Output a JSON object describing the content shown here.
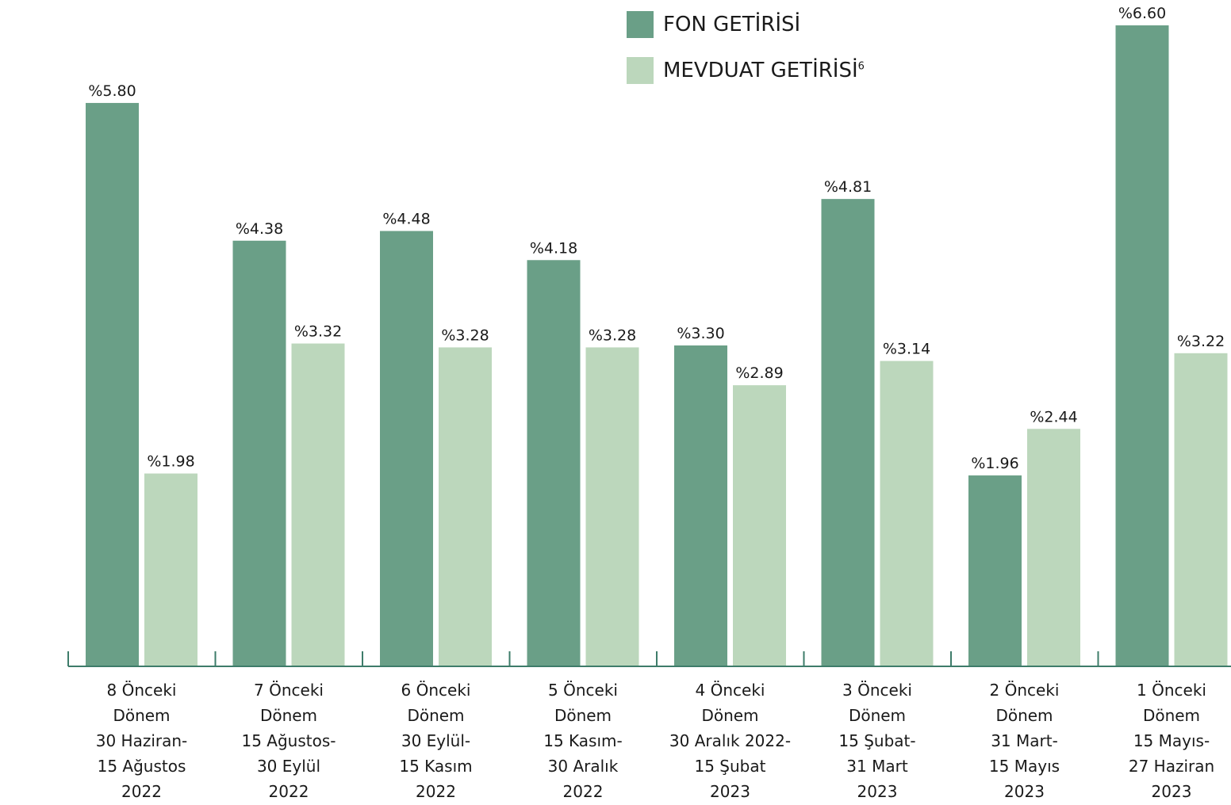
{
  "chart_data": {
    "type": "bar",
    "colors": {
      "fon": "#6a9f87",
      "mevduat": "#bcd7bc",
      "axis": "#3e7c6a"
    },
    "series": [
      {
        "name": "FON GETİRİSİ",
        "values": [
          5.8,
          4.38,
          4.48,
          4.18,
          3.3,
          4.81,
          1.96,
          6.6
        ]
      },
      {
        "name": "MEVDUAT GETİRİSİ",
        "name_sup": "6",
        "values": [
          1.98,
          3.32,
          3.28,
          3.28,
          2.89,
          3.14,
          2.44,
          3.22
        ]
      }
    ],
    "value_labels": [
      [
        "%5.80",
        "%4.38",
        "%4.48",
        "%4.18",
        "%3.30",
        "%4.81",
        "%1.96",
        "%6.60"
      ],
      [
        "%1.98",
        "%3.32",
        "%3.28",
        "%3.28",
        "%2.89",
        "%3.14",
        "%2.44",
        "%3.22"
      ]
    ],
    "categories": [
      [
        "8 Önceki",
        "Dönem",
        "30 Haziran-",
        "15 Ağustos",
        "2022"
      ],
      [
        "7 Önceki",
        "Dönem",
        "15 Ağustos-",
        "30 Eylül",
        "2022"
      ],
      [
        "6 Önceki",
        "Dönem",
        "30 Eylül-",
        "15 Kasım",
        "2022"
      ],
      [
        "5 Önceki",
        "Dönem",
        "15 Kasım-",
        "30 Aralık",
        "2022"
      ],
      [
        "4 Önceki",
        "Dönem",
        "30 Aralık 2022-",
        "15 Şubat",
        "2023"
      ],
      [
        "3 Önceki",
        "Dönem",
        "15 Şubat-",
        "31 Mart",
        "2023"
      ],
      [
        "2 Önceki",
        "Dönem",
        "31 Mart-",
        "15 Mayıs",
        "2023"
      ],
      [
        "1 Önceki",
        "Dönem",
        "15 Mayıs-",
        "27 Haziran",
        "2023"
      ]
    ],
    "ylim": [
      0,
      6.6
    ],
    "grid": false,
    "legend_position": "top-center"
  }
}
